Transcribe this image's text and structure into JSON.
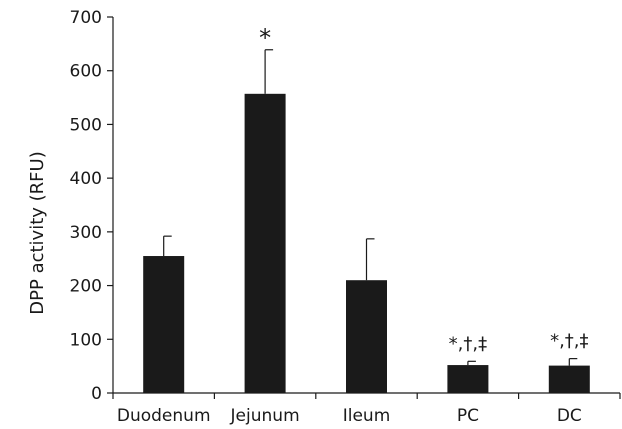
{
  "chart_data": {
    "type": "bar",
    "title": "",
    "xlabel": "",
    "ylabel": "DPP activity (RFU)",
    "ylim": [
      0,
      700
    ],
    "yticks": [
      0,
      100,
      200,
      300,
      400,
      500,
      600,
      700
    ],
    "categories": [
      "Duodenum",
      "Jejunum",
      "Ileum",
      "PC",
      "DC"
    ],
    "values": [
      255,
      557,
      210,
      52,
      51
    ],
    "error_upper": [
      37,
      82,
      77,
      7,
      13
    ],
    "annotations": [
      "",
      "*",
      "",
      "*,†,‡",
      "*,†,‡"
    ],
    "bar_color": "#1a1a1a",
    "grid": false,
    "legend": "none"
  }
}
